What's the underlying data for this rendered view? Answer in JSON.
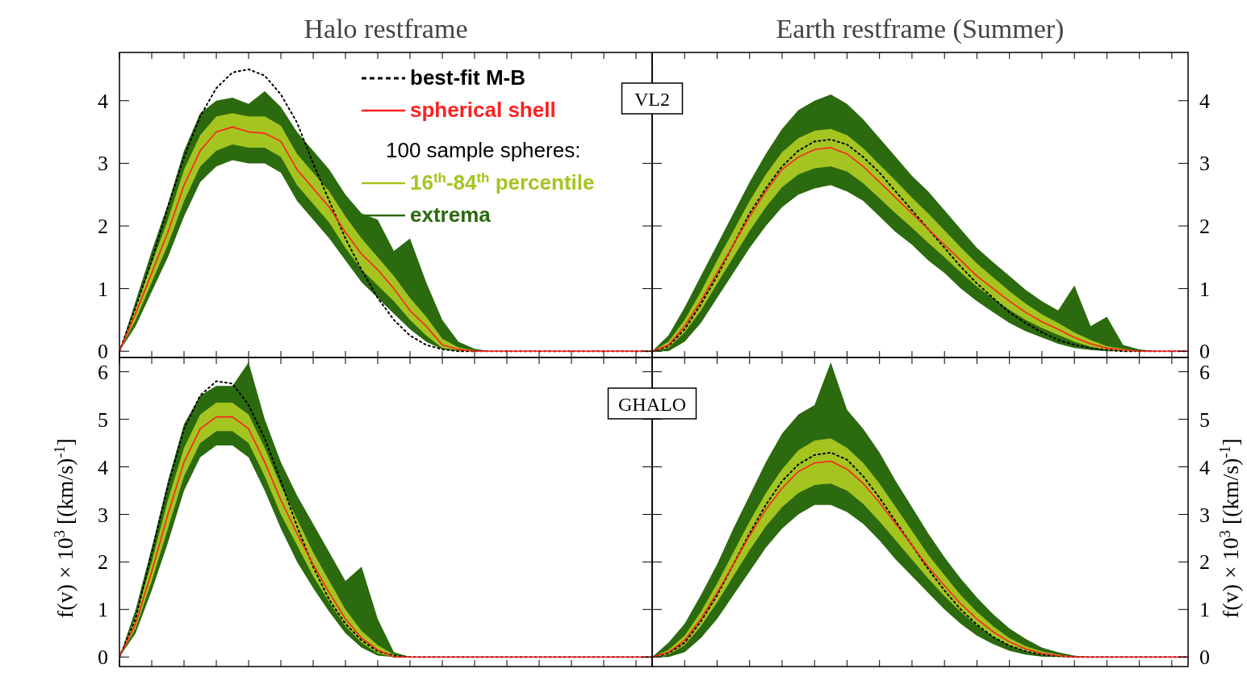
{
  "chart_data": [
    {
      "type": "line",
      "title": "Halo restframe",
      "categories": [
        null,
        null,
        null,
        null,
        null,
        null,
        null,
        null,
        null,
        null,
        null,
        null,
        null,
        null,
        null,
        null,
        null,
        null,
        null,
        null,
        null,
        null,
        null,
        null,
        null,
        null,
        null,
        null,
        null,
        null,
        null,
        null,
        null,
        null
      ],
      "ylim": [
        -0.1,
        4.77
      ],
      "yticks": [
        0,
        1,
        2,
        3,
        4
      ],
      "tick_labels": "y",
      "legend": "top right",
      "legend_title": "100 sample spheres:",
      "series": [
        {
          "name": "extrema",
          "color": "#2b6a0e",
          "values": [
            null,
            null,
            null,
            null,
            null,
            null,
            null,
            null,
            null,
            null,
            null,
            null,
            null,
            null,
            null,
            null,
            null,
            null,
            null,
            null,
            null,
            null,
            null,
            null,
            null,
            null,
            null,
            null,
            null,
            null,
            null,
            null,
            null,
            null
          ],
          "lower": [
            0,
            0.4,
            0.95,
            1.5,
            2.15,
            2.7,
            2.95,
            3.05,
            3.0,
            3.0,
            2.85,
            2.4,
            2.1,
            1.8,
            1.45,
            1.1,
            0.85,
            0.6,
            0.35,
            0.15,
            0.03,
            0,
            0,
            0,
            0,
            0,
            0,
            0,
            0,
            0,
            0,
            0,
            0,
            0
          ],
          "upper": [
            0,
            0.8,
            1.6,
            2.35,
            3.2,
            3.8,
            4.0,
            4.05,
            3.95,
            4.15,
            3.9,
            3.5,
            3.2,
            2.9,
            2.5,
            2.2,
            2.1,
            1.6,
            1.8,
            1.1,
            0.5,
            0.15,
            0.04,
            0,
            0,
            0,
            0,
            0,
            0,
            0,
            0,
            0,
            0,
            0
          ]
        },
        {
          "name": "16$^{th}$-84$^{th}$ percentile",
          "color": "#a4c520",
          "values": [
            null,
            null,
            null,
            null,
            null,
            null,
            null,
            null,
            null,
            null,
            null,
            null,
            null,
            null,
            null,
            null,
            null,
            null,
            null,
            null,
            null,
            null,
            null,
            null,
            null,
            null,
            null,
            null,
            null,
            null,
            null,
            null,
            null,
            null
          ],
          "lower": [
            0,
            0.5,
            1.1,
            1.7,
            2.4,
            2.95,
            3.2,
            3.3,
            3.25,
            3.25,
            3.1,
            2.65,
            2.35,
            2.05,
            1.65,
            1.3,
            1.05,
            0.8,
            0.5,
            0.25,
            0.05,
            0.01,
            0,
            0,
            0,
            0,
            0,
            0,
            0,
            0,
            0,
            0,
            0,
            0
          ],
          "upper": [
            0,
            0.7,
            1.4,
            2.1,
            2.9,
            3.45,
            3.75,
            3.8,
            3.75,
            3.75,
            3.6,
            3.15,
            2.85,
            2.55,
            2.15,
            1.8,
            1.5,
            1.2,
            0.85,
            0.55,
            0.2,
            0.06,
            0.01,
            0,
            0,
            0,
            0,
            0,
            0,
            0,
            0,
            0,
            0,
            0
          ]
        },
        {
          "name": "best-fit M-B",
          "color": "#000000",
          "line_style": "dotted",
          "values": [
            0,
            0.7,
            1.45,
            2.3,
            3.1,
            3.75,
            4.2,
            4.45,
            4.5,
            4.4,
            4.1,
            3.65,
            3.0,
            2.4,
            1.8,
            1.3,
            0.85,
            0.5,
            0.25,
            0.1,
            0.03,
            0,
            0,
            0,
            0,
            0,
            0,
            0,
            0,
            0,
            0,
            0,
            0,
            0
          ]
        },
        {
          "name": "spherical shell",
          "color": "#ff2020",
          "values": [
            0,
            0.6,
            1.25,
            1.9,
            2.65,
            3.2,
            3.5,
            3.58,
            3.5,
            3.48,
            3.35,
            2.9,
            2.6,
            2.3,
            1.9,
            1.55,
            1.3,
            1.0,
            0.65,
            0.4,
            0.1,
            0.03,
            0,
            0,
            0,
            0,
            0,
            0,
            0,
            0,
            0,
            0,
            0,
            0
          ]
        }
      ]
    },
    {
      "type": "line",
      "title": "Earth restframe (Summer)",
      "categories": [
        null,
        null,
        null,
        null,
        null,
        null,
        null,
        null,
        null,
        null,
        null,
        null,
        null,
        null,
        null,
        null,
        null,
        null,
        null,
        null,
        null,
        null,
        null,
        null,
        null,
        null,
        null,
        null,
        null,
        null,
        null,
        null,
        null,
        null
      ],
      "ylim": [
        -0.1,
        4.77
      ],
      "yticks": [
        0,
        1,
        2,
        3,
        4
      ],
      "tick_labels": "y",
      "annotations": [
        "VL2"
      ],
      "series": [
        {
          "color": "#2b6a0e",
          "values": [
            null,
            null,
            null,
            null,
            null,
            null,
            null,
            null,
            null,
            null,
            null,
            null,
            null,
            null,
            null,
            null,
            null,
            null,
            null,
            null,
            null,
            null,
            null,
            null,
            null,
            null,
            null,
            null,
            null,
            null,
            null,
            null,
            null,
            null
          ],
          "lower": [
            0,
            0,
            0.15,
            0.45,
            0.85,
            1.25,
            1.65,
            2.0,
            2.3,
            2.5,
            2.6,
            2.65,
            2.55,
            2.4,
            2.15,
            1.9,
            1.7,
            1.45,
            1.25,
            1.0,
            0.8,
            0.62,
            0.45,
            0.32,
            0.22,
            0.12,
            0.05,
            0.02,
            0,
            0,
            0,
            0,
            0,
            0
          ],
          "upper": [
            0,
            0.25,
            0.7,
            1.2,
            1.7,
            2.2,
            2.7,
            3.15,
            3.55,
            3.85,
            4.0,
            4.1,
            3.95,
            3.7,
            3.4,
            3.1,
            2.8,
            2.55,
            2.25,
            1.95,
            1.65,
            1.42,
            1.2,
            0.98,
            0.8,
            0.65,
            1.05,
            0.4,
            0.55,
            0.1,
            0.03,
            0,
            0,
            0
          ]
        },
        {
          "color": "#a4c520",
          "values": [
            null,
            null,
            null,
            null,
            null,
            null,
            null,
            null,
            null,
            null,
            null,
            null,
            null,
            null,
            null,
            null,
            null,
            null,
            null,
            null,
            null,
            null,
            null,
            null,
            null,
            null,
            null,
            null,
            null,
            null,
            null,
            null,
            null,
            null
          ],
          "lower": [
            0,
            0.05,
            0.3,
            0.65,
            1.08,
            1.5,
            1.92,
            2.3,
            2.62,
            2.82,
            2.92,
            2.95,
            2.87,
            2.68,
            2.44,
            2.2,
            1.97,
            1.73,
            1.5,
            1.26,
            1.03,
            0.84,
            0.66,
            0.5,
            0.37,
            0.26,
            0.15,
            0.07,
            0.02,
            0,
            0,
            0,
            0,
            0
          ],
          "upper": [
            0,
            0.15,
            0.5,
            0.95,
            1.45,
            1.92,
            2.4,
            2.82,
            3.18,
            3.4,
            3.52,
            3.55,
            3.45,
            3.24,
            2.98,
            2.72,
            2.45,
            2.2,
            1.93,
            1.66,
            1.4,
            1.18,
            0.96,
            0.76,
            0.59,
            0.45,
            0.3,
            0.18,
            0.08,
            0.04,
            0,
            0,
            0,
            0
          ]
        },
        {
          "color": "#000000",
          "line_style": "dotted",
          "values": [
            0,
            0.08,
            0.35,
            0.75,
            1.2,
            1.7,
            2.2,
            2.6,
            2.95,
            3.2,
            3.35,
            3.38,
            3.3,
            3.1,
            2.85,
            2.55,
            2.25,
            1.95,
            1.65,
            1.35,
            1.08,
            0.85,
            0.62,
            0.45,
            0.3,
            0.18,
            0.1,
            0.05,
            0.02,
            0,
            0,
            0,
            0,
            0
          ]
        },
        {
          "color": "#ff2020",
          "values": [
            0,
            0.1,
            0.4,
            0.8,
            1.25,
            1.7,
            2.15,
            2.55,
            2.9,
            3.1,
            3.22,
            3.25,
            3.15,
            2.95,
            2.7,
            2.45,
            2.2,
            1.95,
            1.7,
            1.45,
            1.2,
            1.0,
            0.8,
            0.62,
            0.47,
            0.35,
            0.22,
            0.12,
            0.05,
            0.02,
            0,
            0,
            0,
            0
          ]
        }
      ]
    },
    {
      "type": "line",
      "ylabel": "f(v) × 10$^{3}$ [(km/s)$^{-1}$]",
      "categories": [
        null,
        null,
        null,
        null,
        null,
        null,
        null,
        null,
        null,
        null,
        null,
        null,
        null,
        null,
        null,
        null,
        null,
        null,
        null,
        null,
        null,
        null,
        null,
        null,
        null,
        null,
        null,
        null,
        null,
        null,
        null,
        null,
        null,
        null
      ],
      "ylim": [
        -0.2,
        6.3
      ],
      "yticks": [
        0,
        1,
        2,
        3,
        4,
        5,
        6
      ],
      "tick_labels": "y",
      "series": [
        {
          "color": "#2b6a0e",
          "values": [
            null,
            null,
            null,
            null,
            null,
            null,
            null,
            null,
            null,
            null,
            null,
            null,
            null,
            null,
            null,
            null,
            null,
            null,
            null,
            null,
            null,
            null,
            null,
            null,
            null,
            null,
            null,
            null,
            null,
            null,
            null,
            null,
            null,
            null
          ],
          "lower": [
            0,
            0.5,
            1.4,
            2.4,
            3.5,
            4.2,
            4.45,
            4.45,
            4.2,
            3.5,
            2.7,
            2.0,
            1.45,
            0.95,
            0.5,
            0.2,
            0.03,
            0,
            0,
            0,
            0,
            0,
            0,
            0,
            0,
            0,
            0,
            0,
            0,
            0,
            0,
            0,
            0,
            0
          ],
          "upper": [
            0,
            1.0,
            2.3,
            3.7,
            4.9,
            5.5,
            5.7,
            5.7,
            6.2,
            5.0,
            4.1,
            3.4,
            2.8,
            2.2,
            1.6,
            1.9,
            0.8,
            0.1,
            0,
            0,
            0,
            0,
            0,
            0,
            0,
            0,
            0,
            0,
            0,
            0,
            0,
            0,
            0,
            0
          ]
        },
        {
          "color": "#a4c520",
          "values": [
            null,
            null,
            null,
            null,
            null,
            null,
            null,
            null,
            null,
            null,
            null,
            null,
            null,
            null,
            null,
            null,
            null,
            null,
            null,
            null,
            null,
            null,
            null,
            null,
            null,
            null,
            null,
            null,
            null,
            null,
            null,
            null,
            null,
            null
          ],
          "lower": [
            0,
            0.6,
            1.6,
            2.7,
            3.8,
            4.5,
            4.75,
            4.75,
            4.5,
            3.8,
            3.0,
            2.35,
            1.7,
            1.15,
            0.65,
            0.3,
            0.08,
            0,
            0,
            0,
            0,
            0,
            0,
            0,
            0,
            0,
            0,
            0,
            0,
            0,
            0,
            0,
            0,
            0
          ],
          "upper": [
            0,
            0.85,
            2.0,
            3.3,
            4.4,
            5.1,
            5.35,
            5.35,
            5.1,
            4.4,
            3.6,
            2.9,
            2.2,
            1.6,
            1.0,
            0.55,
            0.25,
            0.05,
            0,
            0,
            0,
            0,
            0,
            0,
            0,
            0,
            0,
            0,
            0,
            0,
            0,
            0,
            0,
            0
          ]
        },
        {
          "color": "#000000",
          "line_style": "dotted",
          "values": [
            0,
            0.8,
            2.2,
            3.6,
            4.8,
            5.5,
            5.8,
            5.75,
            5.3,
            4.6,
            3.7,
            2.75,
            1.9,
            1.2,
            0.7,
            0.35,
            0.12,
            0.03,
            0,
            0,
            0,
            0,
            0,
            0,
            0,
            0,
            0,
            0,
            0,
            0,
            0,
            0,
            0,
            0
          ]
        },
        {
          "color": "#ff2020",
          "values": [
            0,
            0.7,
            1.8,
            3.0,
            4.1,
            4.8,
            5.05,
            5.05,
            4.8,
            4.1,
            3.3,
            2.6,
            1.95,
            1.35,
            0.8,
            0.4,
            0.15,
            0,
            0,
            0,
            0,
            0,
            0,
            0,
            0,
            0,
            0,
            0,
            0,
            0,
            0,
            0,
            0,
            0
          ]
        }
      ]
    },
    {
      "type": "line",
      "y2label": "f(v) × 10$^{3}$ [(km/s)$^{-1}$]",
      "categories": [
        null,
        null,
        null,
        null,
        null,
        null,
        null,
        null,
        null,
        null,
        null,
        null,
        null,
        null,
        null,
        null,
        null,
        null,
        null,
        null,
        null,
        null,
        null,
        null,
        null,
        null,
        null,
        null,
        null,
        null,
        null,
        null,
        null,
        null
      ],
      "ylim": [
        -0.2,
        6.3
      ],
      "yticks": [
        0,
        1,
        2,
        3,
        4,
        5,
        6
      ],
      "tick_labels": "y",
      "annotations": [
        "GHALO"
      ],
      "series": [
        {
          "color": "#2b6a0e",
          "values": [
            null,
            null,
            null,
            null,
            null,
            null,
            null,
            null,
            null,
            null,
            null,
            null,
            null,
            null,
            null,
            null,
            null,
            null,
            null,
            null,
            null,
            null,
            null,
            null,
            null,
            null,
            null,
            null,
            null,
            null,
            null,
            null,
            null,
            null
          ],
          "lower": [
            0,
            0,
            0.1,
            0.4,
            0.8,
            1.3,
            1.8,
            2.3,
            2.7,
            3.0,
            3.2,
            3.2,
            3.05,
            2.8,
            2.45,
            2.05,
            1.7,
            1.35,
            1.0,
            0.7,
            0.45,
            0.27,
            0.13,
            0.05,
            0.01,
            0,
            0,
            0,
            0,
            0,
            0,
            0,
            0,
            0
          ],
          "upper": [
            0,
            0.3,
            0.7,
            1.3,
            1.95,
            2.7,
            3.4,
            4.1,
            4.7,
            5.1,
            5.3,
            6.2,
            5.2,
            4.8,
            4.3,
            3.7,
            3.15,
            2.6,
            2.1,
            1.65,
            1.25,
            0.9,
            0.6,
            0.38,
            0.2,
            0.1,
            0.03,
            0,
            0,
            0,
            0,
            0,
            0,
            0
          ]
        },
        {
          "color": "#a4c520",
          "values": [
            null,
            null,
            null,
            null,
            null,
            null,
            null,
            null,
            null,
            null,
            null,
            null,
            null,
            null,
            null,
            null,
            null,
            null,
            null,
            null,
            null,
            null,
            null,
            null,
            null,
            null,
            null,
            null,
            null,
            null,
            null,
            null,
            null,
            null
          ],
          "lower": [
            0,
            0.05,
            0.25,
            0.65,
            1.15,
            1.7,
            2.25,
            2.75,
            3.15,
            3.45,
            3.62,
            3.65,
            3.5,
            3.22,
            2.85,
            2.45,
            2.05,
            1.65,
            1.28,
            0.95,
            0.66,
            0.42,
            0.24,
            0.12,
            0.05,
            0.01,
            0,
            0,
            0,
            0,
            0,
            0,
            0,
            0
          ],
          "upper": [
            0,
            0.15,
            0.45,
            0.95,
            1.55,
            2.2,
            2.85,
            3.45,
            3.95,
            4.35,
            4.55,
            4.6,
            4.4,
            4.08,
            3.65,
            3.15,
            2.65,
            2.15,
            1.72,
            1.3,
            0.95,
            0.65,
            0.4,
            0.23,
            0.12,
            0.05,
            0.01,
            0,
            0,
            0,
            0,
            0,
            0,
            0
          ]
        },
        {
          "color": "#000000",
          "line_style": "dotted",
          "values": [
            0,
            0.08,
            0.3,
            0.75,
            1.3,
            1.95,
            2.6,
            3.2,
            3.7,
            4.05,
            4.25,
            4.3,
            4.15,
            3.8,
            3.35,
            2.85,
            2.35,
            1.85,
            1.4,
            1.0,
            0.68,
            0.42,
            0.24,
            0.12,
            0.05,
            0.02,
            0,
            0,
            0,
            0,
            0,
            0,
            0,
            0
          ]
        },
        {
          "color": "#ff2020",
          "values": [
            0,
            0.1,
            0.35,
            0.8,
            1.35,
            1.95,
            2.55,
            3.1,
            3.55,
            3.9,
            4.08,
            4.12,
            3.95,
            3.65,
            3.25,
            2.8,
            2.35,
            1.9,
            1.5,
            1.12,
            0.8,
            0.53,
            0.32,
            0.17,
            0.08,
            0.03,
            0,
            0,
            0,
            0,
            0,
            0,
            0,
            0
          ]
        }
      ]
    }
  ]
}
